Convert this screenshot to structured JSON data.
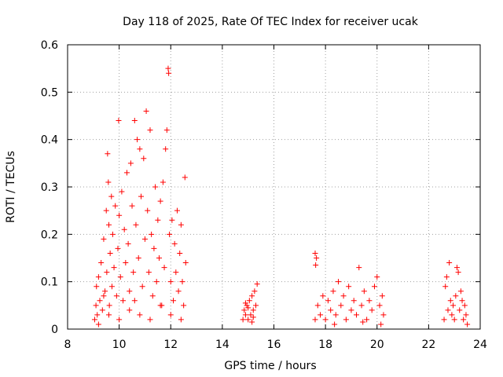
{
  "chart_data": {
    "type": "scatter",
    "title": "Day 118 of 2025, Rate Of TEC Index for receiver ucak",
    "xlabel": "GPS time / hours",
    "ylabel": "ROTI / TECUs",
    "xlim": [
      8,
      24
    ],
    "ylim": [
      0,
      0.6
    ],
    "xticks": [
      "8",
      "10",
      "12",
      "14",
      "16",
      "18",
      "20",
      "22",
      "24"
    ],
    "yticks": [
      "0",
      "0.1",
      "0.2",
      "0.3",
      "0.4",
      "0.5",
      "0.6"
    ],
    "grid": true,
    "marker": "+",
    "color": "#ff0000",
    "series": [
      {
        "points": [
          [
            9.05,
            0.02
          ],
          [
            9.1,
            0.05
          ],
          [
            9.12,
            0.09
          ],
          [
            9.15,
            0.03
          ],
          [
            9.2,
            0.11
          ],
          [
            9.25,
            0.06
          ],
          [
            9.3,
            0.14
          ],
          [
            9.35,
            0.04
          ],
          [
            9.4,
            0.19
          ],
          [
            9.45,
            0.08
          ],
          [
            9.5,
            0.25
          ],
          [
            9.52,
            0.12
          ],
          [
            9.55,
            0.37
          ],
          [
            9.58,
            0.31
          ],
          [
            9.6,
            0.22
          ],
          [
            9.62,
            0.05
          ],
          [
            9.65,
            0.16
          ],
          [
            9.7,
            0.28
          ],
          [
            9.72,
            0.09
          ],
          [
            9.75,
            0.2
          ],
          [
            9.8,
            0.13
          ],
          [
            9.85,
            0.26
          ],
          [
            9.9,
            0.07
          ],
          [
            9.95,
            0.17
          ],
          [
            9.98,
            0.44
          ],
          [
            10.0,
            0.24
          ],
          [
            10.05,
            0.11
          ],
          [
            10.1,
            0.29
          ],
          [
            10.15,
            0.06
          ],
          [
            10.2,
            0.21
          ],
          [
            10.25,
            0.14
          ],
          [
            10.3,
            0.33
          ],
          [
            10.35,
            0.18
          ],
          [
            10.4,
            0.08
          ],
          [
            10.45,
            0.35
          ],
          [
            10.5,
            0.26
          ],
          [
            10.55,
            0.12
          ],
          [
            10.6,
            0.44
          ],
          [
            10.65,
            0.22
          ],
          [
            10.7,
            0.4
          ],
          [
            10.75,
            0.15
          ],
          [
            10.8,
            0.38
          ],
          [
            10.85,
            0.28
          ],
          [
            10.9,
            0.09
          ],
          [
            10.95,
            0.36
          ],
          [
            11.0,
            0.19
          ],
          [
            11.05,
            0.46
          ],
          [
            11.1,
            0.25
          ],
          [
            11.15,
            0.12
          ],
          [
            11.2,
            0.42
          ],
          [
            11.25,
            0.2
          ],
          [
            11.3,
            0.07
          ],
          [
            11.35,
            0.17
          ],
          [
            11.4,
            0.3
          ],
          [
            11.45,
            0.1
          ],
          [
            11.5,
            0.23
          ],
          [
            11.55,
            0.15
          ],
          [
            11.6,
            0.27
          ],
          [
            11.65,
            0.05
          ],
          [
            11.7,
            0.31
          ],
          [
            11.75,
            0.13
          ],
          [
            11.8,
            0.38
          ],
          [
            11.85,
            0.42
          ],
          [
            11.9,
            0.55
          ],
          [
            11.92,
            0.54
          ],
          [
            11.95,
            0.2
          ],
          [
            12.0,
            0.1
          ],
          [
            12.05,
            0.23
          ],
          [
            12.1,
            0.06
          ],
          [
            12.15,
            0.18
          ],
          [
            12.2,
            0.12
          ],
          [
            12.25,
            0.25
          ],
          [
            12.3,
            0.08
          ],
          [
            12.35,
            0.16
          ],
          [
            12.4,
            0.22
          ],
          [
            12.45,
            0.1
          ],
          [
            12.5,
            0.05
          ],
          [
            12.55,
            0.32
          ],
          [
            12.58,
            0.14
          ],
          [
            9.2,
            0.01
          ],
          [
            9.6,
            0.03
          ],
          [
            10.0,
            0.02
          ],
          [
            10.4,
            0.04
          ],
          [
            10.8,
            0.03
          ],
          [
            11.2,
            0.02
          ],
          [
            11.6,
            0.05
          ],
          [
            12.0,
            0.03
          ],
          [
            12.4,
            0.02
          ],
          [
            9.4,
            0.07
          ],
          [
            10.6,
            0.06
          ],
          [
            14.8,
            0.02
          ],
          [
            14.85,
            0.04
          ],
          [
            14.9,
            0.03
          ],
          [
            14.95,
            0.05
          ],
          [
            15.0,
            0.02
          ],
          [
            15.05,
            0.06
          ],
          [
            15.1,
            0.03
          ],
          [
            15.15,
            0.07
          ],
          [
            15.2,
            0.04
          ],
          [
            15.25,
            0.08
          ],
          [
            15.3,
            0.05
          ],
          [
            15.35,
            0.095
          ],
          [
            15.15,
            0.015
          ],
          [
            14.9,
            0.055
          ],
          [
            15.0,
            0.045
          ],
          [
            15.2,
            0.025
          ],
          [
            17.6,
            0.16
          ],
          [
            17.65,
            0.15
          ],
          [
            17.62,
            0.135
          ],
          [
            17.6,
            0.02
          ],
          [
            17.7,
            0.05
          ],
          [
            17.8,
            0.03
          ],
          [
            17.9,
            0.07
          ],
          [
            18.0,
            0.02
          ],
          [
            18.1,
            0.06
          ],
          [
            18.2,
            0.04
          ],
          [
            18.3,
            0.08
          ],
          [
            18.4,
            0.03
          ],
          [
            18.5,
            0.1
          ],
          [
            18.6,
            0.05
          ],
          [
            18.7,
            0.07
          ],
          [
            18.8,
            0.02
          ],
          [
            18.9,
            0.09
          ],
          [
            19.0,
            0.04
          ],
          [
            19.1,
            0.06
          ],
          [
            19.2,
            0.03
          ],
          [
            19.3,
            0.13
          ],
          [
            19.4,
            0.05
          ],
          [
            19.5,
            0.08
          ],
          [
            19.6,
            0.02
          ],
          [
            19.7,
            0.06
          ],
          [
            19.8,
            0.04
          ],
          [
            19.9,
            0.09
          ],
          [
            20.0,
            0.11
          ],
          [
            20.1,
            0.05
          ],
          [
            20.2,
            0.07
          ],
          [
            20.25,
            0.03
          ],
          [
            18.35,
            0.01
          ],
          [
            19.45,
            0.015
          ],
          [
            20.15,
            0.01
          ],
          [
            22.6,
            0.02
          ],
          [
            22.65,
            0.09
          ],
          [
            22.7,
            0.11
          ],
          [
            22.75,
            0.04
          ],
          [
            22.8,
            0.14
          ],
          [
            22.85,
            0.06
          ],
          [
            22.9,
            0.03
          ],
          [
            22.95,
            0.05
          ],
          [
            23.0,
            0.02
          ],
          [
            23.05,
            0.07
          ],
          [
            23.1,
            0.13
          ],
          [
            23.15,
            0.12
          ],
          [
            23.2,
            0.04
          ],
          [
            23.25,
            0.08
          ],
          [
            23.3,
            0.06
          ],
          [
            23.35,
            0.02
          ],
          [
            23.4,
            0.05
          ],
          [
            23.45,
            0.03
          ],
          [
            23.5,
            0.01
          ]
        ]
      }
    ]
  }
}
